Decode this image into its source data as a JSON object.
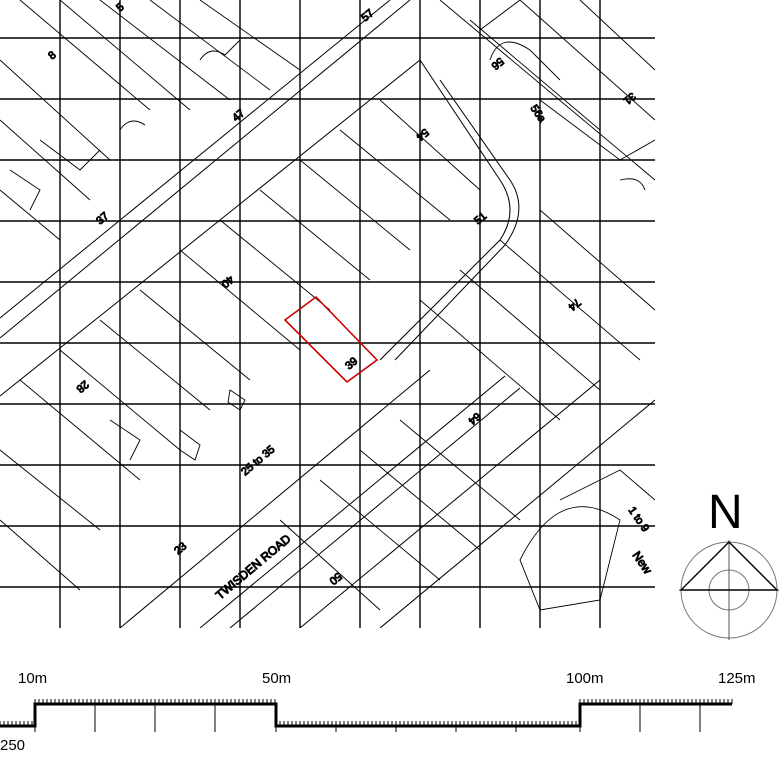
{
  "map": {
    "road_labels": [
      "TWISDEN ROAD",
      "New"
    ],
    "house_numbers": [
      "8",
      "47",
      "57",
      "56",
      "56a",
      "31",
      "54",
      "37",
      "51",
      "40",
      "74",
      "28",
      "39",
      "64",
      "25 to 35",
      "23",
      "50",
      "1 to 9",
      "5"
    ],
    "highlighted_plot": "39",
    "highlight_color": "#cc0000",
    "line_color": "#000000"
  },
  "north_arrow": {
    "letter": "N"
  },
  "scale_bar": {
    "labels": [
      "10m",
      "50m",
      "100m",
      "125m"
    ],
    "ratio_label": "250"
  }
}
